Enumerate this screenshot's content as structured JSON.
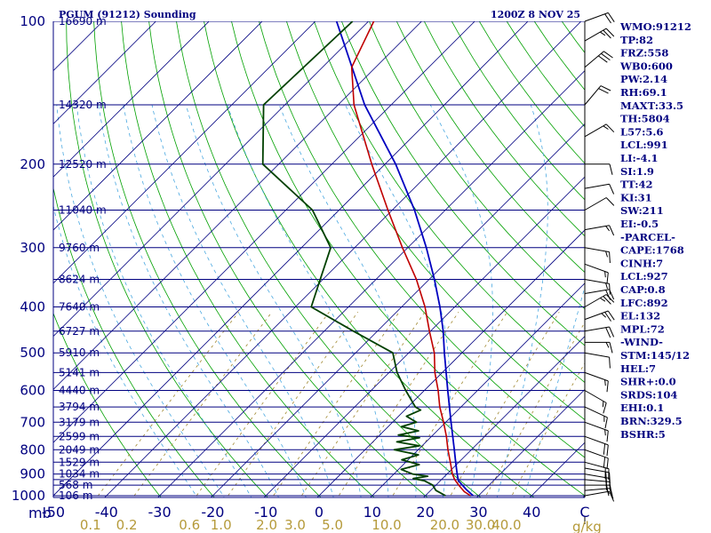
{
  "header": {
    "station": "PGUM (91212) Sounding",
    "datetime": "1200Z  8 NOV 25"
  },
  "colors": {
    "isobar": "#000080",
    "isotherm": "#000080",
    "dry_adiabat": "#00a000",
    "moist_adiabat": "#4aa8e0",
    "mixing_ratio": "#a08830",
    "temperature": "#c00000",
    "dewpoint": "#004000",
    "parcel": "#0000c0",
    "wind": "#000000",
    "mixing_label": "#b59a3a"
  },
  "chart_data": {
    "type": "skew-t",
    "title": "PGUM (91212) Sounding",
    "valid_time": "1200Z  8 NOV 25",
    "pressure_axis": {
      "unit": "mb",
      "range": [
        1000,
        100
      ],
      "ticks": [
        100,
        200,
        300,
        400,
        500,
        600,
        700,
        800,
        900,
        1000
      ],
      "isobars": [
        100,
        150,
        200,
        250,
        300,
        350,
        400,
        450,
        500,
        550,
        600,
        650,
        700,
        750,
        800,
        850,
        900,
        925,
        950,
        1000
      ]
    },
    "temperature_axis": {
      "unit": "C",
      "range": [
        -50,
        50
      ],
      "ticks": [
        -50,
        -40,
        -30,
        -20,
        -10,
        0,
        10,
        20,
        30,
        40,
        50
      ],
      "tick_labels": [
        "-50",
        "-40",
        "-30",
        "-20",
        "-10",
        "0",
        "10",
        "20",
        "30",
        "40",
        "C"
      ]
    },
    "unit_labels": {
      "pressure": "mb",
      "mixing_ratio": "g/kg"
    },
    "mixing_ratio_labels": [
      {
        "w": 0.1,
        "label": "0.1"
      },
      {
        "w": 0.2,
        "label": "0.2"
      },
      {
        "w": 0.6,
        "label": "0.6"
      },
      {
        "w": 1.0,
        "label": "1.0"
      },
      {
        "w": 2.0,
        "label": "2.0"
      },
      {
        "w": 3.0,
        "label": "3.0"
      },
      {
        "w": 5.0,
        "label": "5.0"
      },
      {
        "w": 10.0,
        "label": "10.0"
      },
      {
        "w": 20.0,
        "label": "20.0"
      },
      {
        "w": 30.0,
        "label": "30.0"
      },
      {
        "w": 40.0,
        "label": "40.0"
      }
    ],
    "heights": [
      {
        "p": 100,
        "label": "16690 m"
      },
      {
        "p": 150,
        "label": "14320 m"
      },
      {
        "p": 200,
        "label": "12520 m"
      },
      {
        "p": 250,
        "label": "11040 m"
      },
      {
        "p": 300,
        "label": "9760 m"
      },
      {
        "p": 350,
        "label": "8624 m"
      },
      {
        "p": 400,
        "label": "7640 m"
      },
      {
        "p": 450,
        "label": "6727 m"
      },
      {
        "p": 500,
        "label": "5910 m"
      },
      {
        "p": 550,
        "label": "5141 m"
      },
      {
        "p": 600,
        "label": "4440 m"
      },
      {
        "p": 650,
        "label": "3794 m"
      },
      {
        "p": 700,
        "label": "3179 m"
      },
      {
        "p": 750,
        "label": "2599 m"
      },
      {
        "p": 800,
        "label": "2049 m"
      },
      {
        "p": 850,
        "label": "1529 m"
      },
      {
        "p": 900,
        "label": "1034 m"
      },
      {
        "p": 950,
        "label": "568 m"
      },
      {
        "p": 1000,
        "label": "106 m"
      }
    ],
    "temperature_profile": [
      {
        "p": 1000,
        "t": 28.5
      },
      {
        "p": 980,
        "t": 26.5
      },
      {
        "p": 950,
        "t": 24.3
      },
      {
        "p": 925,
        "t": 22.5
      },
      {
        "p": 900,
        "t": 21.0
      },
      {
        "p": 850,
        "t": 18.4
      },
      {
        "p": 800,
        "t": 15.6
      },
      {
        "p": 750,
        "t": 12.8
      },
      {
        "p": 700,
        "t": 9.6
      },
      {
        "p": 650,
        "t": 6.0
      },
      {
        "p": 600,
        "t": 2.6
      },
      {
        "p": 550,
        "t": -1.4
      },
      {
        "p": 500,
        "t": -5.2
      },
      {
        "p": 450,
        "t": -10.2
      },
      {
        "p": 400,
        "t": -15.6
      },
      {
        "p": 350,
        "t": -22.4
      },
      {
        "p": 300,
        "t": -31.0
      },
      {
        "p": 250,
        "t": -40.8
      },
      {
        "p": 200,
        "t": -52.5
      },
      {
        "p": 150,
        "t": -67.0
      },
      {
        "p": 125,
        "t": -74.5
      },
      {
        "p": 100,
        "t": -79.0
      }
    ],
    "dewpoint_profile": [
      {
        "p": 1000,
        "t": 23.8
      },
      {
        "p": 975,
        "t": 21.0
      },
      {
        "p": 950,
        "t": 19.4
      },
      {
        "p": 930,
        "t": 17.0
      },
      {
        "p": 920,
        "t": 14.5
      },
      {
        "p": 910,
        "t": 16.8
      },
      {
        "p": 900,
        "t": 13.5
      },
      {
        "p": 880,
        "t": 10.5
      },
      {
        "p": 860,
        "t": 13.0
      },
      {
        "p": 840,
        "t": 8.8
      },
      {
        "p": 820,
        "t": 11.0
      },
      {
        "p": 800,
        "t": 5.5
      },
      {
        "p": 785,
        "t": 9.5
      },
      {
        "p": 770,
        "t": 4.5
      },
      {
        "p": 755,
        "t": 8.0
      },
      {
        "p": 745,
        "t": 3.5
      },
      {
        "p": 730,
        "t": 6.5
      },
      {
        "p": 715,
        "t": 2.5
      },
      {
        "p": 700,
        "t": 4.5
      },
      {
        "p": 680,
        "t": 1.5
      },
      {
        "p": 660,
        "t": 3.0
      },
      {
        "p": 650,
        "t": 1.4
      },
      {
        "p": 600,
        "t": -3.5
      },
      {
        "p": 550,
        "t": -8.5
      },
      {
        "p": 500,
        "t": -13.0
      },
      {
        "p": 450,
        "t": -24.5
      },
      {
        "p": 400,
        "t": -37.0
      },
      {
        "p": 350,
        "t": -40.5
      },
      {
        "p": 300,
        "t": -44.5
      },
      {
        "p": 250,
        "t": -55.0
      },
      {
        "p": 200,
        "t": -73.0
      },
      {
        "p": 150,
        "t": -84.0
      },
      {
        "p": 100,
        "t": -83.0
      }
    ],
    "parcel_profile": [
      {
        "p": 1000,
        "t": 29.0
      },
      {
        "p": 970,
        "t": 26.5
      },
      {
        "p": 930,
        "t": 23.4
      },
      {
        "p": 900,
        "t": 21.9
      },
      {
        "p": 850,
        "t": 19.4
      },
      {
        "p": 800,
        "t": 16.8
      },
      {
        "p": 700,
        "t": 11.0
      },
      {
        "p": 600,
        "t": 4.4
      },
      {
        "p": 500,
        "t": -3.3
      },
      {
        "p": 450,
        "t": -7.6
      },
      {
        "p": 400,
        "t": -12.8
      },
      {
        "p": 350,
        "t": -19.0
      },
      {
        "p": 300,
        "t": -26.5
      },
      {
        "p": 250,
        "t": -35.8
      },
      {
        "p": 200,
        "t": -48.0
      },
      {
        "p": 150,
        "t": -65.0
      },
      {
        "p": 100,
        "t": -86.0
      }
    ],
    "winds": [
      {
        "p": 1000,
        "dir": 80,
        "spd": 10
      },
      {
        "p": 975,
        "dir": 85,
        "spd": 15
      },
      {
        "p": 950,
        "dir": 90,
        "spd": 20
      },
      {
        "p": 925,
        "dir": 95,
        "spd": 20
      },
      {
        "p": 900,
        "dir": 100,
        "spd": 20
      },
      {
        "p": 875,
        "dir": 100,
        "spd": 20
      },
      {
        "p": 850,
        "dir": 105,
        "spd": 20
      },
      {
        "p": 800,
        "dir": 110,
        "spd": 20
      },
      {
        "p": 750,
        "dir": 110,
        "spd": 20
      },
      {
        "p": 700,
        "dir": 110,
        "spd": 15
      },
      {
        "p": 650,
        "dir": 115,
        "spd": 15
      },
      {
        "p": 600,
        "dir": 120,
        "spd": 15
      },
      {
        "p": 550,
        "dir": 110,
        "spd": 15
      },
      {
        "p": 500,
        "dir": 100,
        "spd": 10
      },
      {
        "p": 475,
        "dir": 90,
        "spd": 15
      },
      {
        "p": 450,
        "dir": 80,
        "spd": 20
      },
      {
        "p": 425,
        "dir": 70,
        "spd": 25
      },
      {
        "p": 400,
        "dir": 60,
        "spd": 25
      },
      {
        "p": 375,
        "dir": 80,
        "spd": 20
      },
      {
        "p": 350,
        "dir": 100,
        "spd": 15
      },
      {
        "p": 325,
        "dir": 110,
        "spd": 15
      },
      {
        "p": 300,
        "dir": 100,
        "spd": 15
      },
      {
        "p": 275,
        "dir": 80,
        "spd": 15
      },
      {
        "p": 250,
        "dir": 60,
        "spd": 10
      },
      {
        "p": 225,
        "dir": 80,
        "spd": 10
      },
      {
        "p": 200,
        "dir": 90,
        "spd": 10
      },
      {
        "p": 175,
        "dir": 60,
        "spd": 15
      },
      {
        "p": 150,
        "dir": 40,
        "spd": 20
      },
      {
        "p": 125,
        "dir": 50,
        "spd": 30
      },
      {
        "p": 110,
        "dir": 60,
        "spd": 25
      },
      {
        "p": 100,
        "dir": 70,
        "spd": 20
      }
    ]
  },
  "indices": {
    "station": [
      "WMO:91212",
      "TP:82",
      "FRZ:558",
      "WB0:600",
      "PW:2.14",
      "RH:69.1",
      "MAXT:33.5",
      "TH:5804",
      "L57:5.6",
      "LCL:991",
      "LI:-4.1",
      "SI:1.9",
      "TT:42",
      "KI:31",
      "SW:211",
      "EI:-0.5"
    ],
    "parcel_title": "-PARCEL-",
    "parcel": [
      "CAPE:1768",
      "CINH:7",
      "LCL:927",
      "CAP:0.8",
      "LFC:892",
      "EL:132",
      "MPL:72"
    ],
    "wind_title": "-WIND-",
    "wind": [
      "STM:145/12",
      "HEL:7",
      "SHR+:0.0",
      "SRDS:104",
      "EHI:0.1",
      "BRN:329.5",
      "BSHR:5"
    ]
  }
}
